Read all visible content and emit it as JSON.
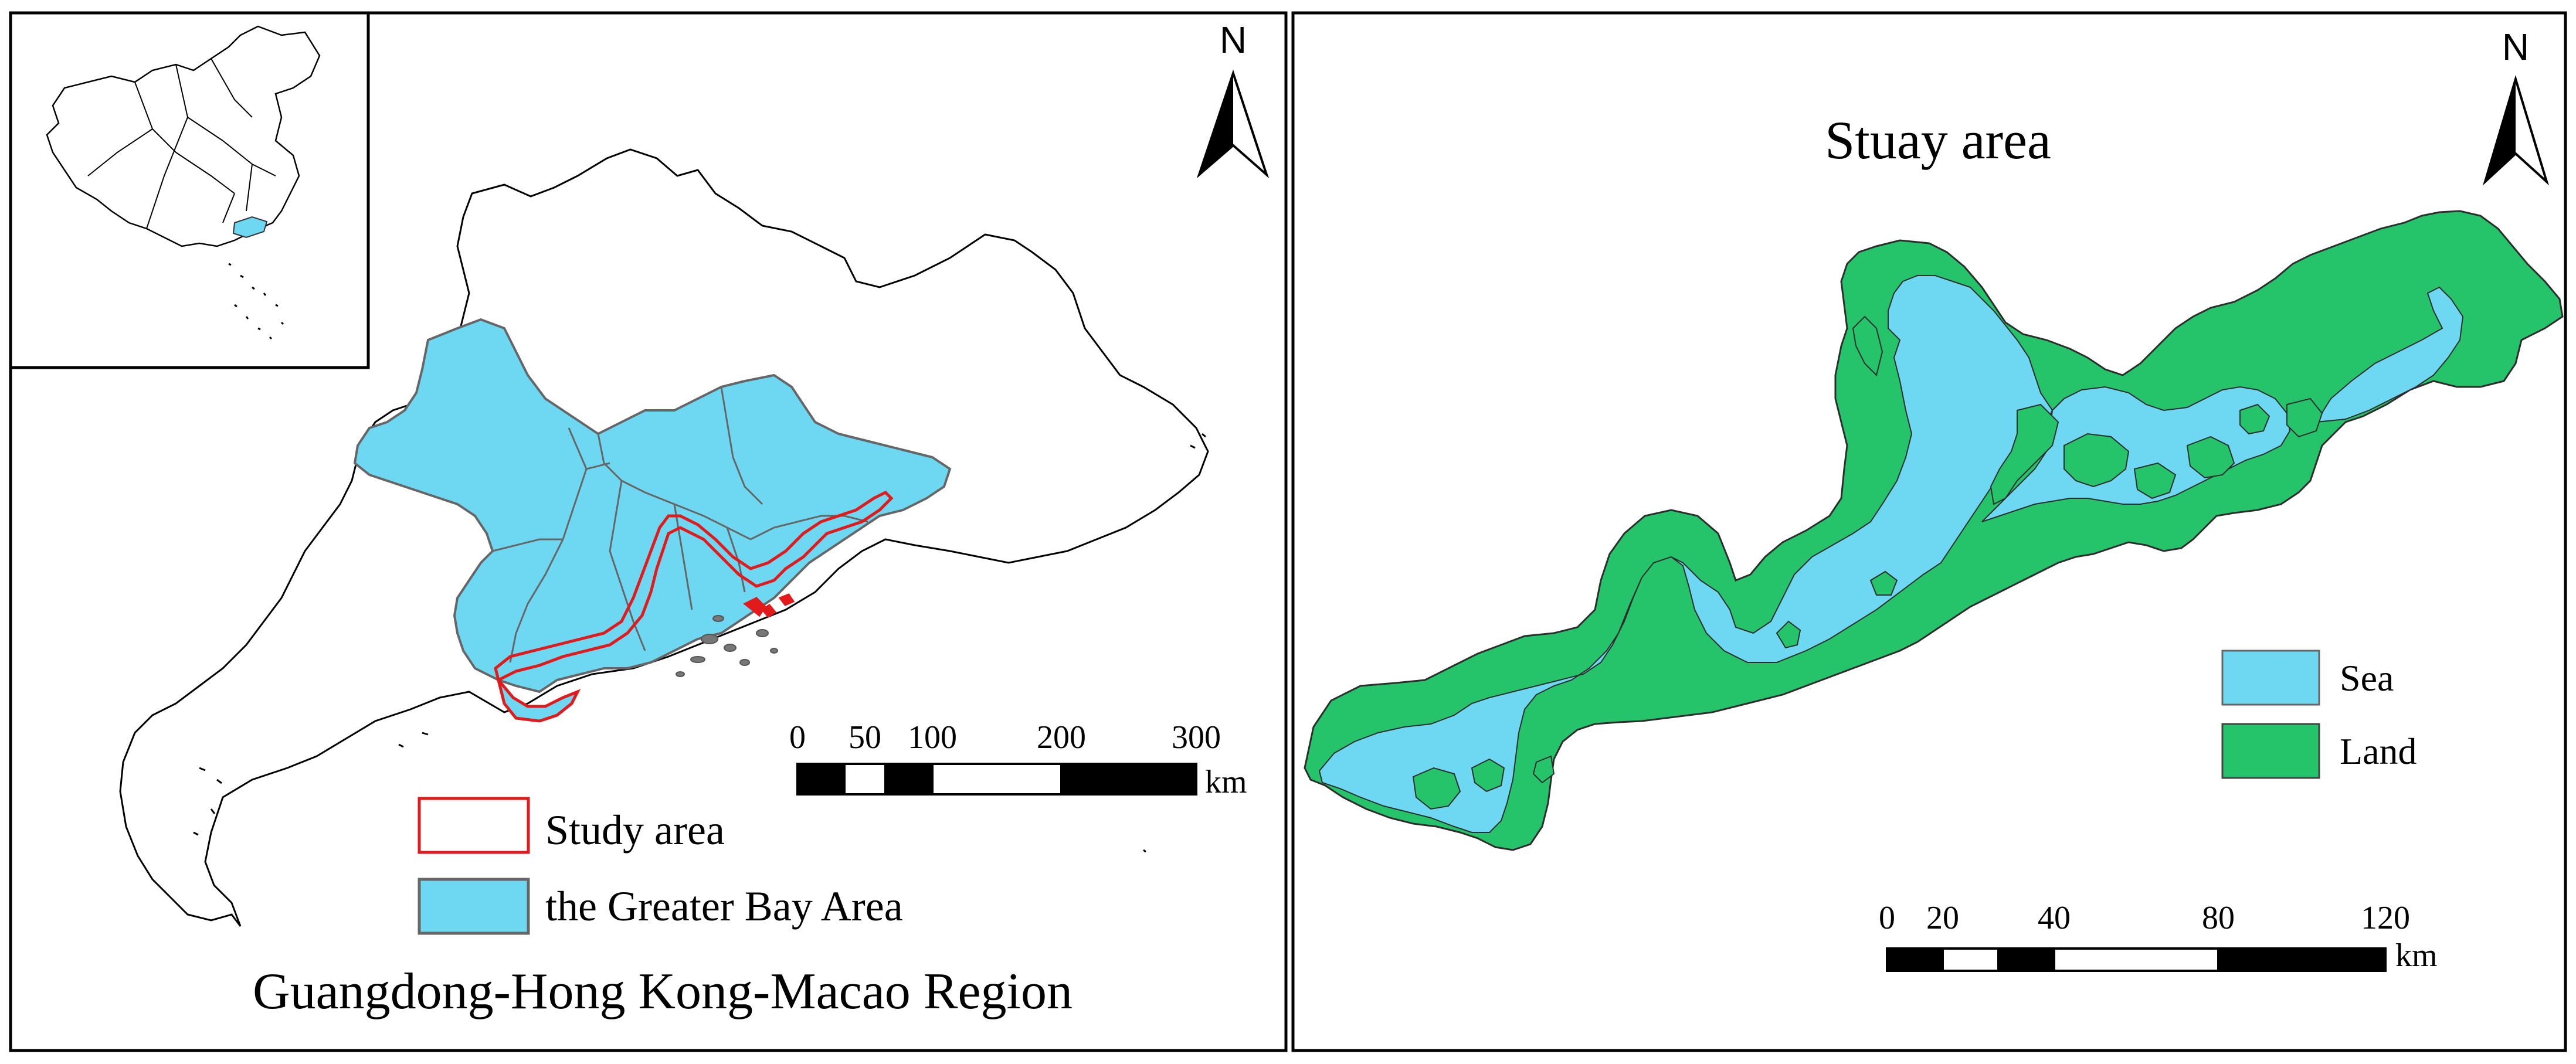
{
  "left_panel": {
    "caption": "Guangdong-Hong Kong-Macao Region",
    "north_label": "N",
    "legend": [
      {
        "label": "Study area",
        "stroke": "#e31a1c",
        "fill": "#ffffff"
      },
      {
        "label": "the Greater Bay Area",
        "stroke": "#666666",
        "fill": "#6ed8f2"
      }
    ],
    "scale_bar": {
      "ticks": [
        "0",
        "50",
        "100",
        "200",
        "300"
      ],
      "unit": "km"
    }
  },
  "right_panel": {
    "title": "Stuay area",
    "north_label": "N",
    "legend": [
      {
        "label": "Sea",
        "fill": "#6ed8f2"
      },
      {
        "label": "Land",
        "fill": "#26c46a"
      }
    ],
    "scale_bar": {
      "ticks": [
        "0",
        "20",
        "40",
        "80",
        "120"
      ],
      "unit": "km"
    }
  },
  "colors": {
    "sea": "#6ed8f2",
    "land": "#26c46a",
    "study_area": "#e31a1c",
    "boundary": "#555555"
  }
}
